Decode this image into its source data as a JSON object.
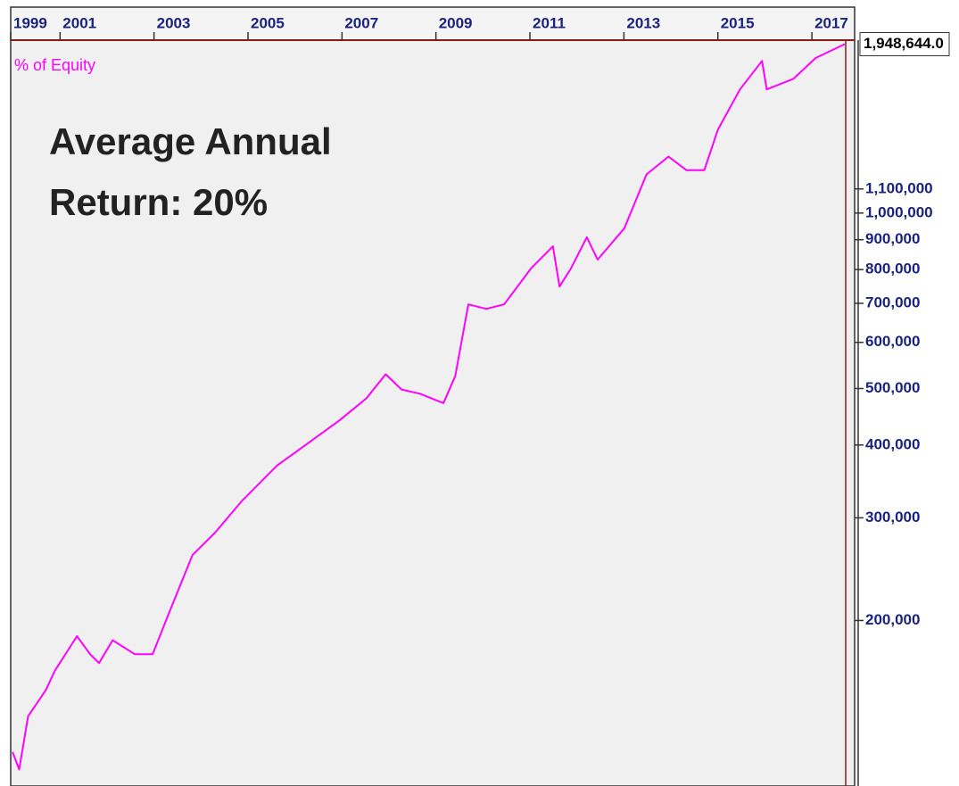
{
  "chart_data": {
    "type": "line",
    "series_label": "% of Equity",
    "annotation": [
      "Average Annual",
      "Return: 20%"
    ],
    "yscale": "log",
    "xlim": [
      1999.95,
      2017.72
    ],
    "ylim": [
      104000,
      1980000
    ],
    "xticks": [
      {
        "value": 1999.95,
        "label": "1999"
      },
      2001,
      2003,
      2005,
      2007,
      2009,
      2011,
      2013,
      2015,
      2017
    ],
    "yticks": [
      {
        "value": 200000,
        "label": "200,000"
      },
      {
        "value": 300000,
        "label": "300,000"
      },
      {
        "value": 400000,
        "label": "400,000"
      },
      {
        "value": 500000,
        "label": "500,000"
      },
      {
        "value": 600000,
        "label": "600,000"
      },
      {
        "value": 700000,
        "label": "700,000"
      },
      {
        "value": 800000,
        "label": "800,000"
      },
      {
        "value": 900000,
        "label": "900,000"
      },
      {
        "value": 1000000,
        "label": "1,000,000"
      },
      {
        "value": 1100000,
        "label": "1,100,000"
      }
    ],
    "last_value": 1948644,
    "last_value_label": "1,948,644.0",
    "series": [
      {
        "name": "% of Equity",
        "color": "#ff00ff",
        "x": [
          1999.99,
          2000.13,
          2000.32,
          2000.7,
          2000.89,
          2001.36,
          2001.64,
          2001.83,
          2002.12,
          2002.59,
          2002.97,
          2003.35,
          2003.82,
          2004.3,
          2004.86,
          2005.62,
          2006.28,
          2006.95,
          2007.52,
          2007.93,
          2008.27,
          2008.65,
          2009.16,
          2009.41,
          2009.69,
          2010.07,
          2010.45,
          2011.02,
          2011.49,
          2011.63,
          2011.87,
          2012.21,
          2012.44,
          2013.01,
          2013.48,
          2013.95,
          2014.33,
          2014.71,
          2015.0,
          2015.47,
          2015.94,
          2016.04,
          2016.61,
          2017.08,
          2017.7
        ],
        "values": [
          119000,
          111000,
          137000,
          152000,
          164000,
          188000,
          175000,
          169000,
          185000,
          175000,
          175000,
          209000,
          259000,
          283000,
          320000,
          369000,
          403000,
          441000,
          481000,
          529000,
          498000,
          490000,
          472000,
          525000,
          697000,
          685000,
          697000,
          803000,
          877000,
          748000,
          803000,
          909000,
          832000,
          942000,
          1165000,
          1250000,
          1185000,
          1185000,
          1390000,
          1630000,
          1824000,
          1630000,
          1700000,
          1845000,
          1948644
        ]
      }
    ]
  }
}
